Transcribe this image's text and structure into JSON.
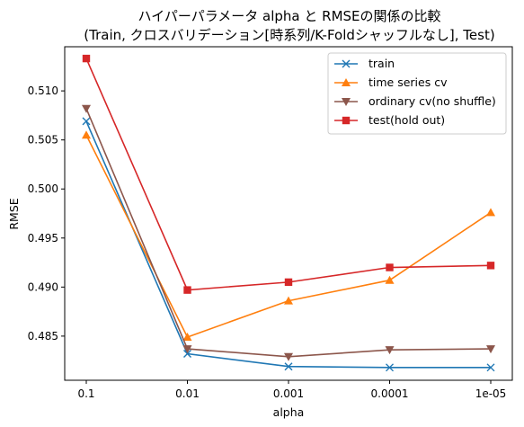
{
  "chart_data": {
    "type": "line",
    "title_line1": "ハイパーパラメータ alpha と RMSEの関係の比較",
    "title_line2": "(Train, クロスバリデーション[時系列/K-Foldシャッフルなし], Test)",
    "xlabel": "alpha",
    "ylabel": "RMSE",
    "categories": [
      "0.1",
      "0.01",
      "0.001",
      "0.0001",
      "1e-05"
    ],
    "ylim": [
      0.4805,
      0.5145
    ],
    "yticks": [
      0.485,
      0.49,
      0.495,
      0.5,
      0.505,
      0.51
    ],
    "ytick_labels": [
      "0.485",
      "0.490",
      "0.495",
      "0.500",
      "0.505",
      "0.510"
    ],
    "grid": false,
    "legend_position": "top-right",
    "series": [
      {
        "name": "train",
        "color": "#1f77b4",
        "marker": "x",
        "values": [
          0.5069,
          0.4832,
          0.4819,
          0.4818,
          0.4818
        ]
      },
      {
        "name": "time series cv",
        "color": "#ff7f0e",
        "marker": "triangle-up",
        "values": [
          0.5055,
          0.4849,
          0.4886,
          0.4907,
          0.4976
        ]
      },
      {
        "name": "ordinary cv(no shuffle)",
        "color": "#8c564b",
        "marker": "triangle-down",
        "values": [
          0.5082,
          0.4837,
          0.4829,
          0.4836,
          0.4837
        ]
      },
      {
        "name": "test(hold out)",
        "color": "#d62728",
        "marker": "square",
        "values": [
          0.5133,
          0.4897,
          0.4905,
          0.492,
          0.4922
        ]
      }
    ]
  }
}
